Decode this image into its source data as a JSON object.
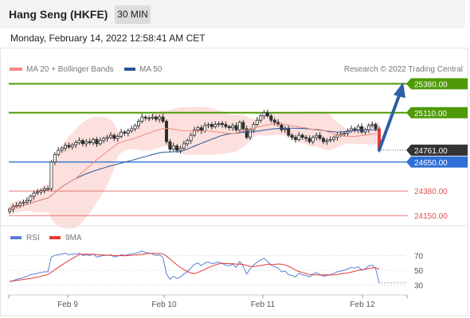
{
  "header": {
    "title": "Hang Seng (HKFE)",
    "timeframe": "30 MIN",
    "timestamp": "Monday, February 14, 2022 12:58:41 AM CET"
  },
  "legend": {
    "items": [
      {
        "label": "MA 20 + Bollinger Bands",
        "color": "#f28b82"
      },
      {
        "label": "MA 50",
        "color": "#2a5599"
      }
    ],
    "credit": "Research © 2022 Trading Central"
  },
  "chart_data": [
    {
      "type": "candlestick",
      "title": "Hang Seng (HKFE) 30 MIN",
      "ylim": [
        24070,
        25420
      ],
      "x_ticks": [
        "Feb 9",
        "Feb 10",
        "Feb 11",
        "Feb 12"
      ],
      "last_price": "24761.00",
      "levels": [
        {
          "value": 25380,
          "label": "25380.00",
          "kind": "target",
          "color": "#4e9a06"
        },
        {
          "value": 25110,
          "label": "25110.00",
          "kind": "target",
          "color": "#4e9a06"
        },
        {
          "value": 24761,
          "label": "24761.00",
          "kind": "last",
          "color": "#333333"
        },
        {
          "value": 24650,
          "label": "24650.00",
          "kind": "pivot",
          "color": "#2f6fd6"
        },
        {
          "value": 24380,
          "label": "24380.00",
          "kind": "support",
          "color": "#e57373"
        },
        {
          "value": 24150,
          "label": "24150.00",
          "kind": "support",
          "color": "#e57373"
        }
      ],
      "close_series": [
        24210,
        24235,
        24245,
        24265,
        24275,
        24290,
        24330,
        24360,
        24370,
        24385,
        24400,
        24400,
        24650,
        24720,
        24760,
        24780,
        24805,
        24790,
        24810,
        24830,
        24850,
        24820,
        24840,
        24830,
        24860,
        24820,
        24850,
        24870,
        24880,
        24900,
        24870,
        24890,
        24930,
        24920,
        24940,
        24960,
        24990,
        25030,
        25070,
        25060,
        25060,
        25070,
        25050,
        25070,
        25030,
        24840,
        24770,
        24800,
        24760,
        24780,
        24820,
        24850,
        24900,
        24950,
        24970,
        24940,
        24990,
        25000,
        24980,
        25000,
        25010,
        25000,
        24980,
        24970,
        24990,
        24950,
        25020,
        24960,
        24880,
        24950,
        25000,
        25040,
        25080,
        25110,
        25080,
        25040,
        25020,
        25000,
        24950,
        24960,
        24900,
        24880,
        24860,
        24900,
        24880,
        24870,
        24840,
        24880,
        24900,
        24870,
        24840,
        24850,
        24860,
        24880,
        24900,
        24910,
        24920,
        24940,
        24960,
        24950,
        24980,
        24930,
        24950,
        24990,
        25000,
        24960,
        24770
      ],
      "series": [
        {
          "name": "MA 20 + Bollinger Bands",
          "type": "line+band"
        },
        {
          "name": "MA 50",
          "type": "line"
        }
      ],
      "forecast_arrow": {
        "from": 24761,
        "to": 25380
      }
    },
    {
      "type": "line",
      "title": "RSI",
      "ylim": [
        20,
        80
      ],
      "y_ticks": [
        "70",
        "50",
        "30"
      ],
      "series": [
        {
          "name": "RSI",
          "color": "#5b7fd6"
        },
        {
          "name": "9MA",
          "color": "#e53935"
        }
      ],
      "rsi_values": [
        35,
        36,
        38,
        39,
        40,
        42,
        44,
        45,
        46,
        47,
        48,
        48,
        68,
        70,
        71,
        72,
        73,
        71,
        72,
        72,
        73,
        70,
        71,
        70,
        72,
        68,
        69,
        70,
        70,
        71,
        68,
        69,
        71,
        70,
        71,
        72,
        73,
        74,
        76,
        74,
        73,
        72,
        70,
        71,
        67,
        45,
        38,
        42,
        39,
        41,
        45,
        48,
        53,
        58,
        60,
        56,
        60,
        61,
        59,
        60,
        61,
        59,
        57,
        56,
        58,
        54,
        62,
        55,
        45,
        52,
        57,
        61,
        64,
        66,
        62,
        57,
        55,
        53,
        48,
        49,
        44,
        43,
        41,
        46,
        44,
        43,
        41,
        45,
        47,
        44,
        42,
        43,
        44,
        46,
        48,
        49,
        50,
        52,
        54,
        53,
        55,
        50,
        52,
        56,
        57,
        52,
        33
      ]
    }
  ]
}
